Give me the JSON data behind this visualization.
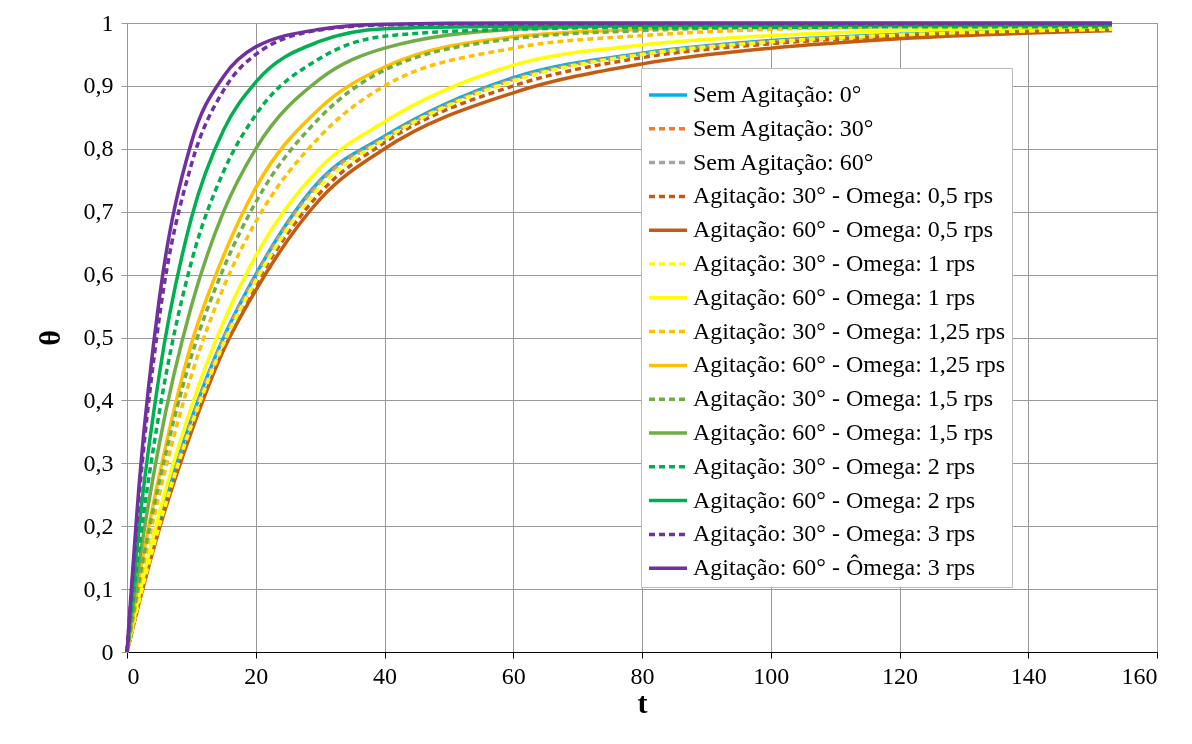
{
  "chart_data": {
    "type": "line",
    "xlabel": "t",
    "ylabel": "θ",
    "x": [
      0,
      2,
      5,
      10,
      15,
      20,
      30,
      40,
      60,
      80,
      100,
      120,
      153
    ],
    "xlim": [
      0,
      160
    ],
    "xticks": [
      0,
      20,
      40,
      60,
      80,
      100,
      120,
      140,
      160
    ],
    "ylim": [
      0,
      1
    ],
    "yticks": [
      0,
      {
        "value": 0.1,
        "label": "0,1"
      },
      {
        "value": 0.2,
        "label": "0,2"
      },
      {
        "value": 0.3,
        "label": "0,3"
      },
      {
        "value": 0.4,
        "label": "0,4"
      },
      {
        "value": 0.5,
        "label": "0,5"
      },
      {
        "value": 0.6,
        "label": "0,6"
      },
      {
        "value": 0.7,
        "label": "0,7"
      },
      {
        "value": 0.8,
        "label": "0,8"
      },
      {
        "value": 0.9,
        "label": "0,9"
      },
      1
    ],
    "grid": true,
    "legend": "right",
    "series": [
      {
        "name": "Sem Agitação: 0°",
        "color": "#00b0f0",
        "line_style": "solid",
        "values": [
          0,
          0.088,
          0.205,
          0.37,
          0.5,
          0.6,
          0.75,
          0.82,
          0.913,
          0.952,
          0.972,
          0.982,
          0.99
        ]
      },
      {
        "name": "Sem Agitação: 30°",
        "color": "#ed7d31",
        "line_style": "dashed",
        "values": [
          0,
          0.087,
          0.204,
          0.368,
          0.498,
          0.598,
          0.748,
          0.818,
          0.911,
          0.951,
          0.971,
          0.981,
          0.989
        ]
      },
      {
        "name": "Sem Agitação: 60°",
        "color": "#a5a5a5",
        "line_style": "dashed",
        "values": [
          0,
          0.086,
          0.203,
          0.366,
          0.496,
          0.596,
          0.746,
          0.816,
          0.91,
          0.95,
          0.97,
          0.98,
          0.988
        ]
      },
      {
        "name": "Agitação: 30° - Omega: 0,5 rps",
        "color": "#c55a11",
        "line_style": "dashed",
        "values": [
          0,
          0.085,
          0.2,
          0.355,
          0.485,
          0.585,
          0.73,
          0.81,
          0.9,
          0.945,
          0.967,
          0.979,
          0.989
        ]
      },
      {
        "name": "Agitação: 60° - Omega: 0,5 rps",
        "color": "#c55a11",
        "line_style": "solid",
        "values": [
          0,
          0.083,
          0.195,
          0.35,
          0.48,
          0.575,
          0.72,
          0.8,
          0.889,
          0.935,
          0.96,
          0.975,
          0.988
        ]
      },
      {
        "name": "Agitação: 30° - Omega: 1 rps",
        "color": "#ffff00",
        "line_style": "dashed",
        "values": [
          0,
          0.086,
          0.2,
          0.36,
          0.49,
          0.59,
          0.74,
          0.815,
          0.908,
          0.95,
          0.97,
          0.981,
          0.99
        ]
      },
      {
        "name": "Agitação: 60° - Omega: 1 rps",
        "color": "#ffff00",
        "line_style": "solid",
        "values": [
          0,
          0.095,
          0.22,
          0.39,
          0.525,
          0.63,
          0.77,
          0.843,
          0.933,
          0.965,
          0.98,
          0.988,
          0.994
        ]
      },
      {
        "name": "Agitação: 30° - Omega: 1,25 rps",
        "color": "#ffc000",
        "line_style": "dashed",
        "values": [
          0,
          0.11,
          0.25,
          0.44,
          0.58,
          0.684,
          0.82,
          0.9,
          0.96,
          0.98,
          0.99,
          0.994,
          0.996
        ]
      },
      {
        "name": "Agitação: 60° - Omega: 1,25 rps",
        "color": "#ffc000",
        "line_style": "solid",
        "values": [
          0,
          0.125,
          0.28,
          0.49,
          0.63,
          0.738,
          0.865,
          0.93,
          0.978,
          0.99,
          0.995,
          0.997,
          0.998
        ]
      },
      {
        "name": "Agitação: 30° - Omega: 1,5 rps",
        "color": "#70ad47",
        "line_style": "dashed",
        "values": [
          0,
          0.12,
          0.27,
          0.47,
          0.61,
          0.715,
          0.85,
          0.925,
          0.975,
          0.988,
          0.994,
          0.996,
          0.997
        ]
      },
      {
        "name": "Agitação: 60° - Omega: 1,5 rps",
        "color": "#70ad47",
        "line_style": "solid",
        "values": [
          0,
          0.15,
          0.33,
          0.55,
          0.7,
          0.8,
          0.911,
          0.96,
          0.99,
          0.996,
          0.998,
          0.999,
          0.999
        ]
      },
      {
        "name": "Agitação: 30° - Omega: 2 rps",
        "color": "#00b050",
        "line_style": "dashed",
        "values": [
          0,
          0.175,
          0.38,
          0.62,
          0.764,
          0.854,
          0.944,
          0.979,
          0.99,
          0.993,
          0.993,
          0.994,
          0.994
        ]
      },
      {
        "name": "Agitação: 60° - Omega: 2 rps",
        "color": "#00b050",
        "line_style": "solid",
        "values": [
          0,
          0.21,
          0.44,
          0.69,
          0.83,
          0.906,
          0.971,
          0.991,
          0.995,
          0.996,
          0.996,
          0.997,
          0.997
        ]
      },
      {
        "name": "Agitação: 30° - Omega: 3 rps",
        "color": "#7030a0",
        "line_style": "dashed",
        "values": [
          0,
          0.26,
          0.53,
          0.775,
          0.893,
          0.95,
          0.989,
          0.997,
          0.999,
          0.999,
          0.999,
          0.999,
          0.999
        ]
      },
      {
        "name": "Agitação: 60° - Ômega: 3 rps",
        "color": "#7030a0",
        "line_style": "solid",
        "values": [
          0,
          0.28,
          0.56,
          0.81,
          0.915,
          0.962,
          0.99,
          0.998,
          1,
          1,
          1,
          1,
          1
        ]
      }
    ]
  }
}
